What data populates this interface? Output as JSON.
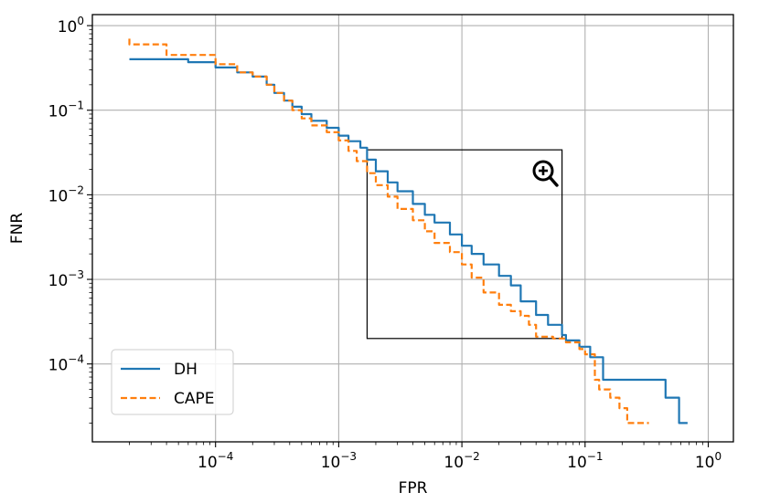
{
  "chart_data": {
    "type": "line",
    "xlabel": "FPR",
    "ylabel": "FNR",
    "xscale": "log",
    "yscale": "log",
    "xlim": [
      1e-05,
      1.6
    ],
    "ylim": [
      1.2e-05,
      1.35
    ],
    "grid": true,
    "legend": {
      "placement": "lower-left"
    },
    "x_ticks": [
      {
        "value": 0.0001,
        "label": "10−4",
        "base": "10",
        "exp": "−4"
      },
      {
        "value": 0.001,
        "label": "10−3",
        "base": "10",
        "exp": "−3"
      },
      {
        "value": 0.01,
        "label": "10−2",
        "base": "10",
        "exp": "−2"
      },
      {
        "value": 0.1,
        "label": "10−1",
        "base": "10",
        "exp": "−1"
      },
      {
        "value": 1,
        "label": "100",
        "base": "10",
        "exp": "0"
      }
    ],
    "y_ticks": [
      {
        "value": 1,
        "label": "100",
        "base": "10",
        "exp": "0"
      },
      {
        "value": 0.1,
        "label": "10−1",
        "base": "10",
        "exp": "−1"
      },
      {
        "value": 0.01,
        "label": "10−2",
        "base": "10",
        "exp": "−2"
      },
      {
        "value": 0.001,
        "label": "10−3",
        "base": "10",
        "exp": "−3"
      },
      {
        "value": 0.0001,
        "label": "10−4",
        "base": "10",
        "exp": "−4"
      }
    ],
    "zoom_box": {
      "x": [
        0.0017,
        0.065
      ],
      "y": [
        0.0002,
        0.034
      ]
    },
    "series": [
      {
        "name": "DH",
        "color": "#1f77b4",
        "style": "solid",
        "x": [
          2e-05,
          6e-05,
          6e-05,
          0.0001,
          0.0001,
          0.00015,
          0.00015,
          0.0002,
          0.0002,
          0.00026,
          0.00026,
          0.0003,
          0.0003,
          0.00036,
          0.00036,
          0.00042,
          0.00042,
          0.0005,
          0.0005,
          0.0006,
          0.0006,
          0.0008,
          0.0008,
          0.001,
          0.001,
          0.0012,
          0.0012,
          0.0015,
          0.0015,
          0.0017,
          0.0017,
          0.002,
          0.002,
          0.0025,
          0.0025,
          0.003,
          0.003,
          0.004,
          0.004,
          0.005,
          0.005,
          0.006,
          0.006,
          0.008,
          0.008,
          0.01,
          0.01,
          0.012,
          0.012,
          0.015,
          0.015,
          0.02,
          0.02,
          0.025,
          0.025,
          0.03,
          0.03,
          0.04,
          0.04,
          0.05,
          0.05,
          0.065,
          0.065,
          0.07,
          0.07,
          0.09,
          0.09,
          0.11,
          0.11,
          0.14,
          0.14,
          0.3,
          0.3,
          0.45,
          0.45,
          0.58,
          0.58,
          0.68
        ],
        "y": [
          0.4,
          0.4,
          0.37,
          0.37,
          0.32,
          0.32,
          0.28,
          0.28,
          0.25,
          0.25,
          0.2,
          0.2,
          0.16,
          0.16,
          0.13,
          0.13,
          0.11,
          0.11,
          0.09,
          0.09,
          0.075,
          0.075,
          0.062,
          0.062,
          0.05,
          0.05,
          0.043,
          0.043,
          0.036,
          0.036,
          0.026,
          0.026,
          0.019,
          0.019,
          0.014,
          0.014,
          0.011,
          0.011,
          0.0078,
          0.0078,
          0.0058,
          0.0058,
          0.0047,
          0.0047,
          0.0034,
          0.0034,
          0.0025,
          0.0025,
          0.002,
          0.002,
          0.0015,
          0.0015,
          0.0011,
          0.0011,
          0.00085,
          0.00085,
          0.00055,
          0.00055,
          0.00038,
          0.00038,
          0.00029,
          0.00029,
          0.00022,
          0.00022,
          0.00019,
          0.00019,
          0.00016,
          0.00016,
          0.00012,
          0.00012,
          6.5e-05,
          6.5e-05,
          6.5e-05,
          6.5e-05,
          4e-05,
          4e-05,
          2e-05,
          2e-05
        ]
      },
      {
        "name": "CAPE",
        "color": "#ff7f0e",
        "style": "dashed",
        "x": [
          2e-05,
          2e-05,
          4e-05,
          4e-05,
          0.0001,
          0.0001,
          0.00015,
          0.00015,
          0.0002,
          0.0002,
          0.00026,
          0.00026,
          0.0003,
          0.0003,
          0.00036,
          0.00036,
          0.00042,
          0.00042,
          0.0005,
          0.0005,
          0.0006,
          0.0006,
          0.0008,
          0.0008,
          0.001,
          0.001,
          0.0012,
          0.0012,
          0.0014,
          0.0014,
          0.0017,
          0.0017,
          0.002,
          0.002,
          0.0025,
          0.0025,
          0.003,
          0.003,
          0.004,
          0.004,
          0.005,
          0.005,
          0.006,
          0.006,
          0.008,
          0.008,
          0.01,
          0.01,
          0.012,
          0.012,
          0.015,
          0.015,
          0.02,
          0.02,
          0.025,
          0.025,
          0.03,
          0.03,
          0.035,
          0.035,
          0.04,
          0.04,
          0.055,
          0.055,
          0.07,
          0.07,
          0.09,
          0.09,
          0.1,
          0.1,
          0.12,
          0.12,
          0.13,
          0.13,
          0.16,
          0.16,
          0.19,
          0.19,
          0.22,
          0.22,
          0.33
        ],
        "y": [
          0.7,
          0.6,
          0.6,
          0.45,
          0.45,
          0.35,
          0.35,
          0.28,
          0.28,
          0.25,
          0.25,
          0.2,
          0.2,
          0.16,
          0.16,
          0.13,
          0.13,
          0.1,
          0.1,
          0.08,
          0.08,
          0.066,
          0.066,
          0.055,
          0.055,
          0.044,
          0.044,
          0.033,
          0.033,
          0.025,
          0.025,
          0.018,
          0.018,
          0.013,
          0.013,
          0.0095,
          0.0095,
          0.0068,
          0.0068,
          0.005,
          0.005,
          0.0037,
          0.0037,
          0.0027,
          0.0027,
          0.0021,
          0.0021,
          0.0015,
          0.0015,
          0.00105,
          0.00105,
          0.0007,
          0.0007,
          0.0005,
          0.0005,
          0.00042,
          0.00042,
          0.00037,
          0.00037,
          0.00029,
          0.00029,
          0.00021,
          0.00021,
          0.0002,
          0.0002,
          0.00018,
          0.00018,
          0.00015,
          0.00015,
          0.00013,
          0.00013,
          6.5e-05,
          6.5e-05,
          5e-05,
          5e-05,
          4e-05,
          4e-05,
          3e-05,
          3e-05,
          2e-05,
          2e-05
        ]
      }
    ]
  },
  "icons": {
    "zoom": "zoom-in-icon"
  }
}
